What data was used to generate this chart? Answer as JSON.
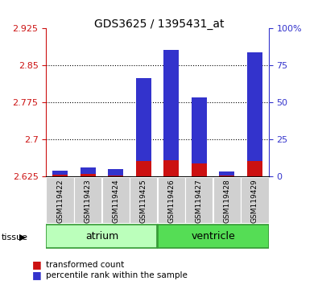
{
  "title": "GDS3625 / 1395431_at",
  "samples": [
    "GSM119422",
    "GSM119423",
    "GSM119424",
    "GSM119425",
    "GSM119426",
    "GSM119427",
    "GSM119428",
    "GSM119429"
  ],
  "tissue_groups": [
    {
      "label": "atrium",
      "start": 0,
      "end": 4,
      "color": "#bbffbb"
    },
    {
      "label": "ventricle",
      "start": 4,
      "end": 8,
      "color": "#55dd55"
    }
  ],
  "y_min": 2.625,
  "y_max": 2.925,
  "y_ticks": [
    2.625,
    2.7,
    2.775,
    2.85,
    2.925
  ],
  "y_tick_labels": [
    "2.625",
    "2.7",
    "2.775",
    "2.85",
    "2.925"
  ],
  "right_y_ticks": [
    0,
    25,
    50,
    75,
    100
  ],
  "right_y_labels": [
    "0",
    "25",
    "50",
    "75",
    "100%"
  ],
  "red_values": [
    2.6285,
    2.6305,
    2.6275,
    2.825,
    2.882,
    2.785,
    2.628,
    2.876
  ],
  "blue_values": [
    2.638,
    2.643,
    2.641,
    2.657,
    2.658,
    2.652,
    2.636,
    2.656
  ],
  "red_color": "#cc1111",
  "blue_color": "#3333cc",
  "bar_width": 0.55,
  "background_color": "#ffffff",
  "plot_bg_color": "#ffffff",
  "title_color": "#000000",
  "left_axis_color": "#cc1111",
  "right_axis_color": "#3333cc"
}
